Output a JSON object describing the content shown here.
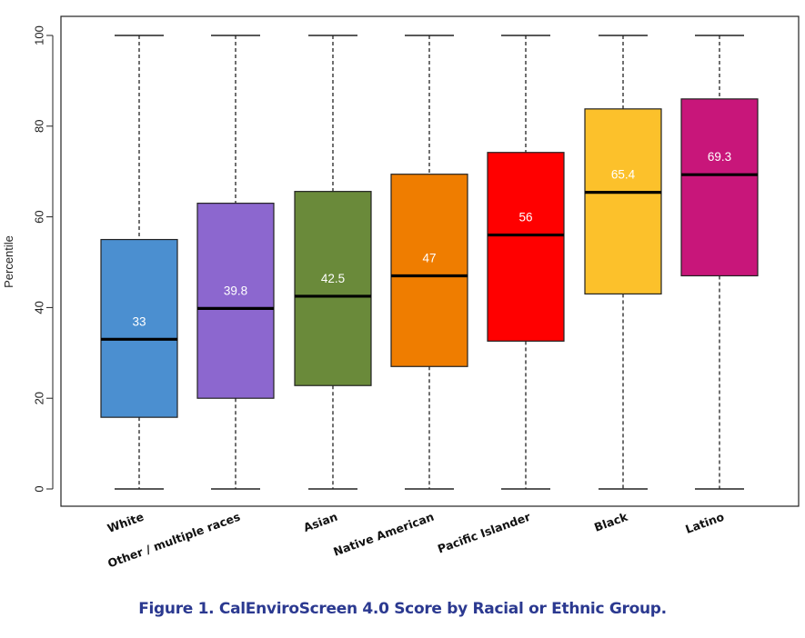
{
  "caption": "Figure 1. CalEnviroScreen 4.0 Score by Racial or Ethnic Group.",
  "chart_data": {
    "type": "boxplot",
    "title": "",
    "xlabel": "",
    "ylabel": "Percentile",
    "ylim": [
      0,
      100
    ],
    "yticks": [
      0,
      20,
      40,
      60,
      80,
      100
    ],
    "grid": false,
    "legend": "none",
    "categories": [
      "White",
      "Other / multiple races",
      "Asian",
      "Native American",
      "Pacific Islander",
      "Black",
      "Latino"
    ],
    "boxes": [
      {
        "category": "White",
        "min": 0,
        "q1": 15.8,
        "median": 33,
        "q3": 55,
        "max": 100,
        "label": "33",
        "color": "#4b8fd0"
      },
      {
        "category": "Other / multiple races",
        "min": 0,
        "q1": 20,
        "median": 39.8,
        "q3": 63,
        "max": 100,
        "label": "39.8",
        "color": "#8c67cf"
      },
      {
        "category": "Asian",
        "min": 0,
        "q1": 22.8,
        "median": 42.5,
        "q3": 65.6,
        "max": 100,
        "label": "42.5",
        "color": "#6a8a3a"
      },
      {
        "category": "Native American",
        "min": 0,
        "q1": 27,
        "median": 47,
        "q3": 69.4,
        "max": 100,
        "label": "47",
        "color": "#ef7d00"
      },
      {
        "category": "Pacific Islander",
        "min": 0,
        "q1": 32.6,
        "median": 56,
        "q3": 74.2,
        "max": 100,
        "label": "56",
        "color": "#ff0000"
      },
      {
        "category": "Black",
        "min": 0,
        "q1": 43,
        "median": 65.4,
        "q3": 83.8,
        "max": 100,
        "label": "65.4",
        "color": "#fcc12b"
      },
      {
        "category": "Latino",
        "min": 0,
        "q1": 47,
        "median": 69.3,
        "q3": 86,
        "max": 100,
        "label": "69.3",
        "color": "#c8167a"
      }
    ]
  }
}
